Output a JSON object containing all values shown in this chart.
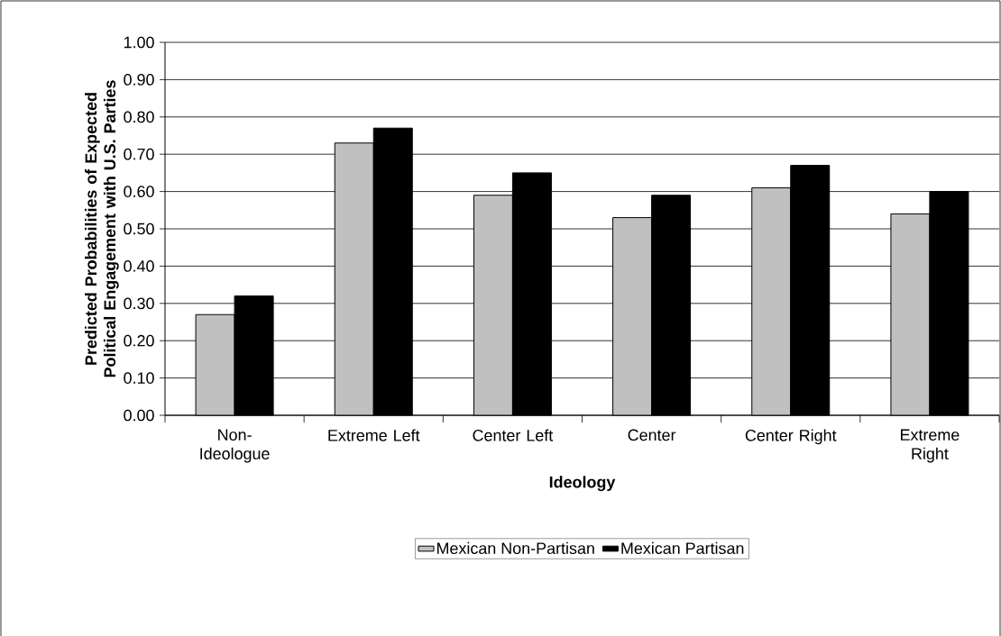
{
  "chart_data": {
    "type": "bar",
    "xlabel": "Ideology",
    "ylabel": "Predicted Probabilities of Expected Political Engagement with U.S. Parties",
    "categories": [
      "Non-Ideologue",
      "Extreme Left",
      "Center Left",
      "Center",
      "Center Right",
      "Extreme Right"
    ],
    "series": [
      {
        "name": "Mexican Non-Partisan",
        "color": "#c0c0c0",
        "values": [
          0.27,
          0.73,
          0.59,
          0.53,
          0.61,
          0.54
        ]
      },
      {
        "name": "Mexican Partisan",
        "color": "#000000",
        "values": [
          0.32,
          0.77,
          0.65,
          0.59,
          0.67,
          0.6
        ]
      }
    ],
    "ylim": [
      0,
      1
    ],
    "yticks": [
      {
        "value": 0,
        "label": "0.00"
      },
      {
        "value": 0.1,
        "label": "0.10"
      },
      {
        "value": 0.2,
        "label": "0.20"
      },
      {
        "value": 0.3,
        "label": "0.30"
      },
      {
        "value": 0.4,
        "label": "0.40"
      },
      {
        "value": 0.5,
        "label": "0.50"
      },
      {
        "value": 0.6,
        "label": "0.60"
      },
      {
        "value": 0.7,
        "label": "0.70"
      },
      {
        "value": 0.8,
        "label": "0.80"
      },
      {
        "value": 0.9,
        "label": "0.90"
      },
      {
        "value": 1,
        "label": "1.00"
      }
    ],
    "grid": "y",
    "legend": "bottom"
  }
}
